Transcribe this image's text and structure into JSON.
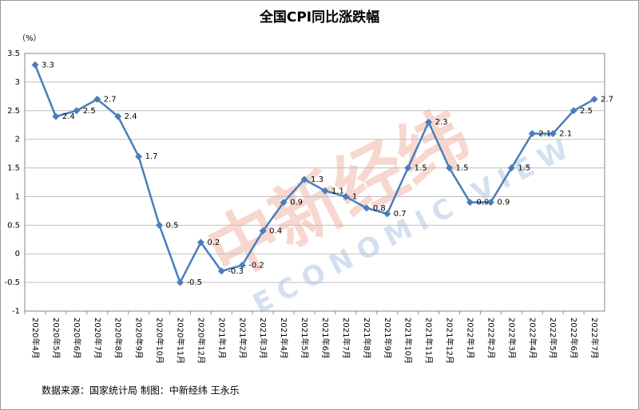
{
  "chart_data": {
    "type": "line",
    "title": "全国CPI同比涨跌幅",
    "unit_label": "（%）",
    "source": "数据来源：国家统计局 制图：中新经纬 王永乐",
    "watermark": [
      "中新经纬",
      "ECONOMIC VIEW"
    ],
    "categories": [
      "2020年4月",
      "2020年5月",
      "2020年6月",
      "2020年7月",
      "2020年8月",
      "2020年9月",
      "2020年10月",
      "2020年11月",
      "2020年12月",
      "2021年1月",
      "2021年2月",
      "2021年3月",
      "2021年4月",
      "2021年5月",
      "2021年6月",
      "2021年7月",
      "2021年8月",
      "2021年9月",
      "2021年10月",
      "2021年11月",
      "2021年12月",
      "2022年1月",
      "2022年2月",
      "2022年3月",
      "2022年4月",
      "2022年5月",
      "2022年6月",
      "2022年7月"
    ],
    "values": [
      3.3,
      2.4,
      2.5,
      2.7,
      2.4,
      1.7,
      0.5,
      -0.5,
      0.2,
      -0.3,
      -0.2,
      0.4,
      0.9,
      1.3,
      1.1,
      1,
      0.8,
      0.7,
      1.5,
      2.3,
      1.5,
      0.9,
      0.9,
      1.5,
      2.1,
      2.1,
      2.5,
      2.7
    ],
    "color": "#4a7ebb",
    "ylim": [
      -1,
      3.5
    ],
    "yticks": [
      -1,
      -0.5,
      0,
      0.5,
      1,
      1.5,
      2,
      2.5,
      3,
      3.5
    ],
    "grid": true
  }
}
